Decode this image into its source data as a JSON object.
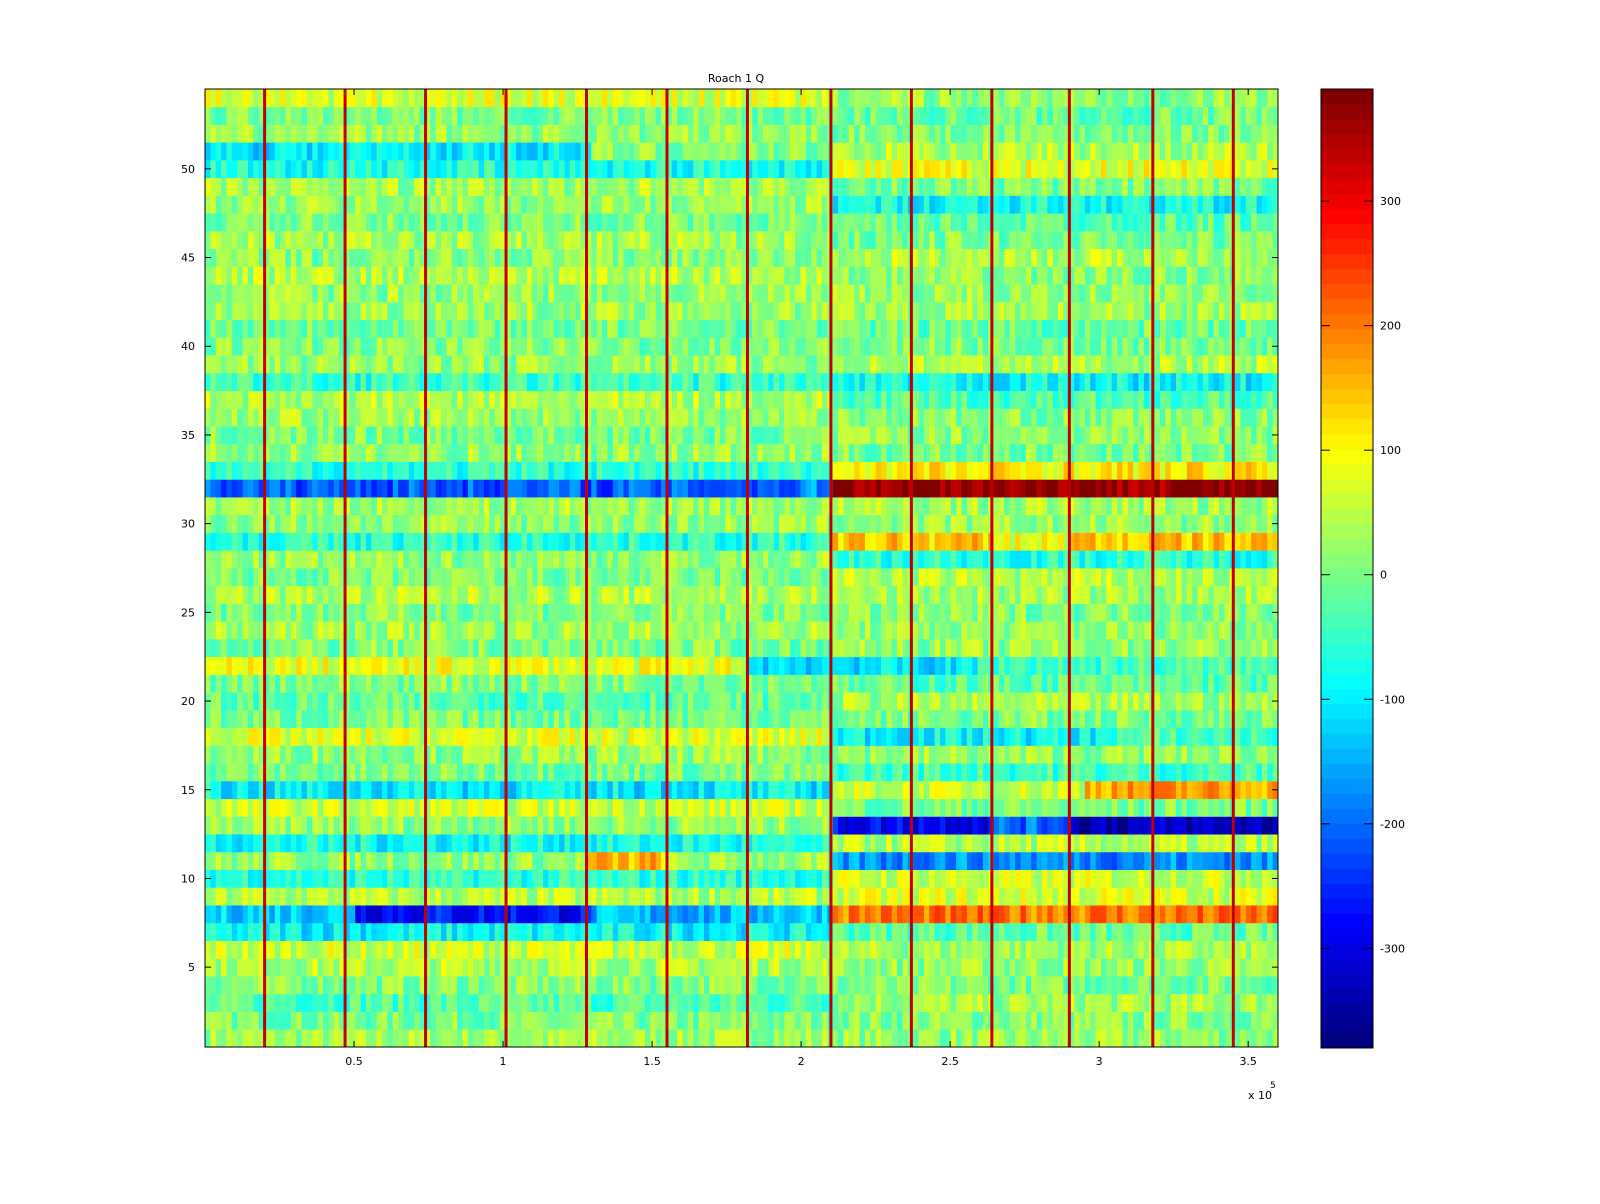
{
  "chart_data": {
    "type": "heatmap",
    "title": "Roach 1 Q",
    "xlabel": "",
    "ylabel": "",
    "x_multiplier_label": "x 10",
    "x_multiplier_exponent": "5",
    "xlim": [
      0,
      3.6
    ],
    "ylim": [
      0.5,
      54.5
    ],
    "rows": 54,
    "x_ticks": [
      0.5,
      1,
      1.5,
      2,
      2.5,
      3,
      3.5
    ],
    "x_tick_labels": [
      "0.5",
      "1",
      "1.5",
      "2",
      "2.5",
      "3",
      "3.5"
    ],
    "y_ticks": [
      5,
      10,
      15,
      20,
      25,
      30,
      35,
      40,
      45,
      50
    ],
    "y_tick_labels": [
      "5",
      "10",
      "15",
      "20",
      "25",
      "30",
      "35",
      "40",
      "45",
      "50"
    ],
    "colorbar": {
      "colormap": "jet",
      "clim": [
        -380,
        390
      ],
      "ticks": [
        -300,
        -200,
        -100,
        0,
        100,
        200,
        300
      ],
      "tick_labels": [
        "-300",
        "-200",
        "-100",
        "0",
        "100",
        "200",
        "300"
      ]
    },
    "spike_columns_x": [
      0.2,
      0.47,
      0.74,
      1.01,
      1.28,
      1.55,
      1.82,
      2.1,
      2.37,
      2.64,
      2.9,
      3.18,
      3.45
    ],
    "spike_value": 330,
    "row_mean_left": [
      30,
      0,
      -30,
      10,
      40,
      60,
      -90,
      -120,
      40,
      -60,
      20,
      30,
      20,
      60,
      -60,
      0,
      20,
      70,
      0,
      -20,
      10,
      80,
      0,
      30,
      10,
      40,
      0,
      20,
      -60,
      20,
      30,
      -170,
      -60,
      20,
      0,
      30,
      40,
      -50,
      20,
      10,
      0,
      30,
      20,
      40,
      10,
      30,
      0,
      20,
      30,
      -70,
      10,
      20,
      0,
      70
    ],
    "row_mean_right": [
      20,
      10,
      30,
      0,
      20,
      30,
      -20,
      200,
      70,
      60,
      -170,
      40,
      -280,
      0,
      170,
      -40,
      20,
      -40,
      0,
      30,
      -20,
      -40,
      20,
      20,
      10,
      30,
      40,
      -60,
      140,
      20,
      30,
      380,
      110,
      0,
      20,
      10,
      -30,
      -90,
      40,
      0,
      -10,
      30,
      20,
      10,
      40,
      0,
      -20,
      -80,
      0,
      80,
      40,
      10,
      -10,
      20
    ],
    "segments": [
      {
        "row": 32,
        "x_from": 0.05,
        "x_to": 2.0,
        "value": -210
      },
      {
        "row": 8,
        "x_from": 0.5,
        "x_to": 1.3,
        "value": -270
      },
      {
        "row": 8,
        "x_from": 1.3,
        "x_to": 1.85,
        "value": -150
      },
      {
        "row": 13,
        "x_from": 2.65,
        "x_to": 2.9,
        "value": -200
      },
      {
        "row": 13,
        "x_from": 2.9,
        "x_to": 3.6,
        "value": -330
      },
      {
        "row": 11,
        "x_from": 1.28,
        "x_to": 1.55,
        "value": 150
      },
      {
        "row": 15,
        "x_from": 0.05,
        "x_to": 2.1,
        "value": -100
      },
      {
        "row": 12,
        "x_from": 0.0,
        "x_to": 2.1,
        "value": -80
      },
      {
        "row": 22,
        "x_from": 1.82,
        "x_to": 2.6,
        "value": -110
      },
      {
        "row": 51,
        "x_from": 0.0,
        "x_to": 1.3,
        "value": -100
      },
      {
        "row": 29,
        "x_from": 2.65,
        "x_to": 2.9,
        "value": 90
      },
      {
        "row": 15,
        "x_from": 2.1,
        "x_to": 2.95,
        "value": 60
      },
      {
        "row": 18,
        "x_from": 2.1,
        "x_to": 3.0,
        "value": -90
      }
    ]
  }
}
